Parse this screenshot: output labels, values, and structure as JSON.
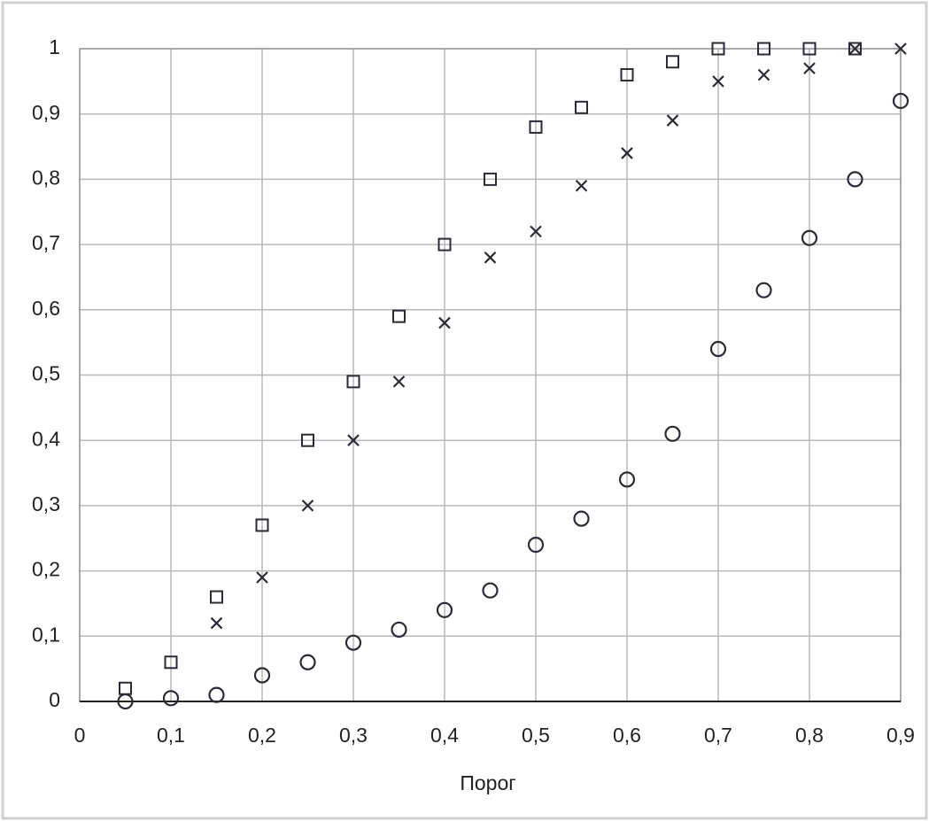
{
  "chart_data": {
    "type": "scatter",
    "x_label": "Порог",
    "xlim": [
      0,
      0.9
    ],
    "ylim": [
      0,
      1
    ],
    "xticks": [
      0,
      {
        "value": 0.1,
        "label": "0,1"
      },
      {
        "value": 0.2,
        "label": "0,2"
      },
      {
        "value": 0.3,
        "label": "0,3"
      },
      {
        "value": 0.4,
        "label": "0,4"
      },
      {
        "value": 0.5,
        "label": "0,5"
      },
      {
        "value": 0.6,
        "label": "0,6"
      },
      {
        "value": 0.7,
        "label": "0,7"
      },
      {
        "value": 0.8,
        "label": "0,8"
      },
      {
        "value": 0.9,
        "label": "0,9"
      }
    ],
    "yticks": [
      0,
      {
        "value": 0.1,
        "label": "0,1"
      },
      {
        "value": 0.2,
        "label": "0,2"
      },
      {
        "value": 0.3,
        "label": "0,3"
      },
      {
        "value": 0.4,
        "label": "0,4"
      },
      {
        "value": 0.5,
        "label": "0,5"
      },
      {
        "value": 0.6,
        "label": "0,6"
      },
      {
        "value": 0.7,
        "label": "0,7"
      },
      {
        "value": 0.8,
        "label": "0,8"
      },
      {
        "value": 0.9,
        "label": "0,9"
      },
      1
    ],
    "grid": true,
    "series": [
      {
        "marker": "square",
        "color": "#2b2b33",
        "x": [
          0.05,
          0.1,
          0.15,
          0.2,
          0.25,
          0.3,
          0.35,
          0.4,
          0.45,
          0.5,
          0.55,
          0.6,
          0.65,
          0.7,
          0.75,
          0.8,
          0.85
        ],
        "values": [
          0.02,
          0.06,
          0.16,
          0.27,
          0.4,
          0.49,
          0.59,
          0.7,
          0.8,
          0.88,
          0.91,
          0.96,
          0.98,
          1.0,
          1.0,
          1.0,
          1.0
        ]
      },
      {
        "marker": "cross",
        "color": "#2b2b33",
        "x": [
          0.15,
          0.2,
          0.25,
          0.3,
          0.35,
          0.4,
          0.45,
          0.5,
          0.55,
          0.6,
          0.65,
          0.7,
          0.75,
          0.8,
          0.85,
          0.9
        ],
        "values": [
          0.12,
          0.19,
          0.3,
          0.4,
          0.49,
          0.58,
          0.68,
          0.72,
          0.79,
          0.84,
          0.89,
          0.95,
          0.96,
          0.97,
          1.0,
          1.0
        ]
      },
      {
        "marker": "circle",
        "color": "#2b2b33",
        "x": [
          0.05,
          0.1,
          0.15,
          0.2,
          0.25,
          0.3,
          0.35,
          0.4,
          0.45,
          0.5,
          0.55,
          0.6,
          0.65,
          0.7,
          0.75,
          0.8,
          0.85,
          0.9
        ],
        "values": [
          0.0,
          0.005,
          0.01,
          0.04,
          0.06,
          0.09,
          0.11,
          0.14,
          0.17,
          0.24,
          0.28,
          0.34,
          0.41,
          0.54,
          0.63,
          0.71,
          0.8,
          0.92
        ]
      }
    ]
  }
}
